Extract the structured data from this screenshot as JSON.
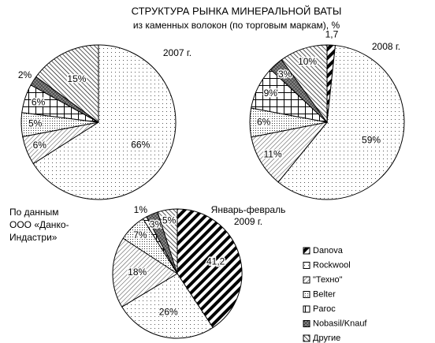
{
  "title": "СТРУКТУРА РЫНКА МИНЕРАЛЬНОЙ ВАТЫ",
  "subtitle": "из каменных волокон (по торговым маркам), %",
  "note": [
    "По данным",
    "ООО «Данко-",
    "Индастри»"
  ],
  "categories": [
    "Danova",
    "Rockwool",
    "\"Техно\"",
    "Belter",
    "Paroc",
    "Nobasil/Knauf",
    "Другие"
  ],
  "patterns": [
    "stripes-bold",
    "dots-sparse",
    "hatch-light",
    "dots-dense",
    "grid",
    "cross-dense",
    "hatch-dark"
  ],
  "chart_data": [
    {
      "type": "pie",
      "title": [
        "2007 г."
      ],
      "values": [
        null,
        66,
        6,
        5,
        6,
        2,
        15
      ],
      "value_labels": [
        null,
        "66%",
        "6%",
        "5%",
        "6%",
        "2%",
        "15%"
      ]
    },
    {
      "type": "pie",
      "title": [
        "2008 г."
      ],
      "values": [
        1.7,
        59,
        11,
        6,
        9,
        3,
        10
      ],
      "value_labels": [
        "1,7",
        "59%",
        "11%",
        "6%",
        "9%",
        "3%",
        "10%"
      ]
    },
    {
      "type": "pie",
      "title": [
        "Январь-февраль",
        "2009 г."
      ],
      "values": [
        41.2,
        26,
        18,
        7,
        1,
        3,
        5
      ],
      "value_labels": [
        "41,2",
        "26%",
        "18%",
        "7%",
        "1%",
        "3%",
        "5%"
      ]
    }
  ]
}
